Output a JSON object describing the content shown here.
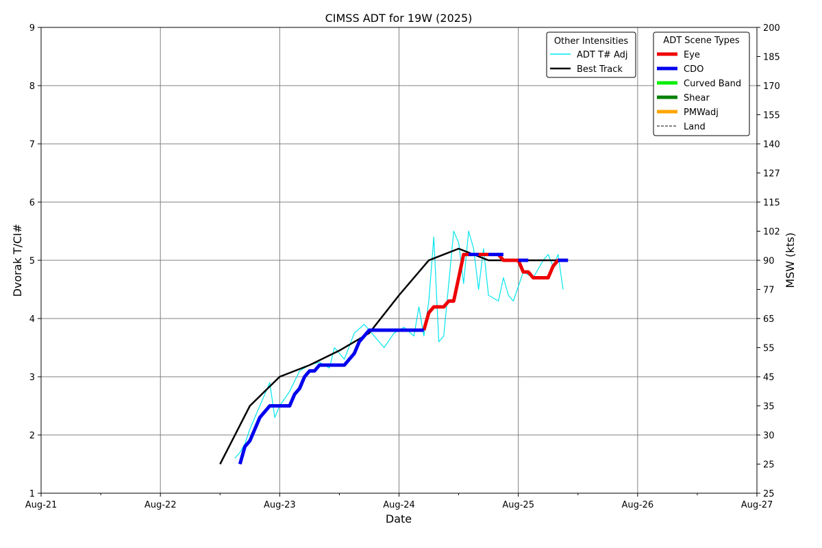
{
  "chart_data": {
    "type": "line",
    "title": "CIMSS ADT for 19W (2025)",
    "xlabel": "Date",
    "ylabel": "Dvorak T/CI#",
    "ylabel_right": "MSW (kts)",
    "x_domain": [
      "2025-08-21",
      "2025-08-27"
    ],
    "x_ticks": [
      {
        "date": "2025-08-21",
        "label": "Aug-21"
      },
      {
        "date": "2025-08-22",
        "label": "Aug-22"
      },
      {
        "date": "2025-08-23",
        "label": "Aug-23"
      },
      {
        "date": "2025-08-24",
        "label": "Aug-24"
      },
      {
        "date": "2025-08-25",
        "label": "Aug-25"
      },
      {
        "date": "2025-08-26",
        "label": "Aug-26"
      },
      {
        "date": "2025-08-27",
        "label": "Aug-27"
      }
    ],
    "ylim": [
      1,
      9
    ],
    "y_ticks": [
      "1",
      "2",
      "3",
      "4",
      "5",
      "6",
      "7",
      "8",
      "9"
    ],
    "right_ticks": [
      {
        "ci": 1,
        "label": "25"
      },
      {
        "ci": 1.5,
        "label": "25"
      },
      {
        "ci": 2,
        "label": "30"
      },
      {
        "ci": 2.5,
        "label": "35"
      },
      {
        "ci": 3,
        "label": "45"
      },
      {
        "ci": 3.5,
        "label": "55"
      },
      {
        "ci": 4,
        "label": "65"
      },
      {
        "ci": 4.5,
        "label": "77"
      },
      {
        "ci": 5,
        "label": "90"
      },
      {
        "ci": 5.5,
        "label": "102"
      },
      {
        "ci": 6,
        "label": "115"
      },
      {
        "ci": 6.5,
        "label": "127"
      },
      {
        "ci": 7,
        "label": "140"
      },
      {
        "ci": 7.5,
        "label": "155"
      },
      {
        "ci": 8,
        "label": "170"
      },
      {
        "ci": 8.5,
        "label": "185"
      },
      {
        "ci": 9,
        "label": "200"
      }
    ],
    "grid": true,
    "legend_other": {
      "title": "Other Intensities",
      "placement": "top-right",
      "entries": [
        {
          "label": "ADT T# Adj",
          "color": "#00e5ee"
        },
        {
          "label": "Best Track",
          "color": "#000000"
        }
      ]
    },
    "legend_scene": {
      "title": "ADT Scene Types",
      "placement": "top-right",
      "entries": [
        {
          "label": "Eye",
          "color": "#ee0000"
        },
        {
          "label": "CDO",
          "color": "#0000ee"
        },
        {
          "label": "Curved Band",
          "color": "#00ee00"
        },
        {
          "label": "Shear",
          "color": "#008000"
        },
        {
          "label": "PMWadj",
          "color": "#ffa500"
        },
        {
          "label": "Land",
          "color": "#000000",
          "dashed": true
        }
      ]
    },
    "series": [
      {
        "name": "Best Track",
        "color": "#000000",
        "points": [
          [
            "2025-08-22T12:00",
            1.5
          ],
          [
            "2025-08-22T18:00",
            2.5
          ],
          [
            "2025-08-23T00:00",
            3.0
          ],
          [
            "2025-08-23T06:00",
            3.2
          ],
          [
            "2025-08-23T12:00",
            3.45
          ],
          [
            "2025-08-23T18:00",
            3.75
          ],
          [
            "2025-08-24T00:00",
            4.4
          ],
          [
            "2025-08-24T06:00",
            5.0
          ],
          [
            "2025-08-24T12:00",
            5.2
          ],
          [
            "2025-08-24T18:00",
            5.0
          ],
          [
            "2025-08-25T00:00",
            5.0
          ],
          [
            "2025-08-25T06:00",
            5.0
          ],
          [
            "2025-08-25T09:00",
            5.0
          ]
        ]
      },
      {
        "name": "ADT T# Adj",
        "color": "#00e5ee",
        "points": [
          [
            "2025-08-22T15:00",
            1.6
          ],
          [
            "2025-08-22T16:00",
            1.7
          ],
          [
            "2025-08-22T17:00",
            1.85
          ],
          [
            "2025-08-22T18:00",
            2.1
          ],
          [
            "2025-08-22T19:00",
            2.3
          ],
          [
            "2025-08-22T20:00",
            2.5
          ],
          [
            "2025-08-22T21:00",
            2.7
          ],
          [
            "2025-08-22T22:00",
            2.9
          ],
          [
            "2025-08-22T23:00",
            2.3
          ],
          [
            "2025-08-23T00:00",
            2.5
          ],
          [
            "2025-08-23T02:00",
            2.75
          ],
          [
            "2025-08-23T04:00",
            3.1
          ],
          [
            "2025-08-23T06:00",
            3.2
          ],
          [
            "2025-08-23T08:00",
            3.25
          ],
          [
            "2025-08-23T10:00",
            3.15
          ],
          [
            "2025-08-23T11:00",
            3.5
          ],
          [
            "2025-08-23T13:00",
            3.3
          ],
          [
            "2025-08-23T15:00",
            3.75
          ],
          [
            "2025-08-23T17:00",
            3.9
          ],
          [
            "2025-08-23T19:00",
            3.7
          ],
          [
            "2025-08-23T21:00",
            3.5
          ],
          [
            "2025-08-23T23:00",
            3.75
          ],
          [
            "2025-08-24T01:00",
            3.85
          ],
          [
            "2025-08-24T03:00",
            3.7
          ],
          [
            "2025-08-24T04:00",
            4.2
          ],
          [
            "2025-08-24T05:00",
            3.7
          ],
          [
            "2025-08-24T06:00",
            4.3
          ],
          [
            "2025-08-24T07:00",
            5.4
          ],
          [
            "2025-08-24T08:00",
            3.6
          ],
          [
            "2025-08-24T09:00",
            3.7
          ],
          [
            "2025-08-24T10:00",
            4.6
          ],
          [
            "2025-08-24T11:00",
            5.5
          ],
          [
            "2025-08-24T12:00",
            5.3
          ],
          [
            "2025-08-24T13:00",
            4.6
          ],
          [
            "2025-08-24T14:00",
            5.5
          ],
          [
            "2025-08-24T15:00",
            5.2
          ],
          [
            "2025-08-24T16:00",
            4.5
          ],
          [
            "2025-08-24T17:00",
            5.2
          ],
          [
            "2025-08-24T18:00",
            4.4
          ],
          [
            "2025-08-24T20:00",
            4.3
          ],
          [
            "2025-08-24T21:00",
            4.7
          ],
          [
            "2025-08-24T22:00",
            4.4
          ],
          [
            "2025-08-24T23:00",
            4.3
          ],
          [
            "2025-08-25T01:00",
            4.8
          ],
          [
            "2025-08-25T03:00",
            4.7
          ],
          [
            "2025-08-25T05:00",
            5.0
          ],
          [
            "2025-08-25T06:00",
            5.1
          ],
          [
            "2025-08-25T07:00",
            4.9
          ],
          [
            "2025-08-25T08:00",
            5.1
          ],
          [
            "2025-08-25T09:00",
            4.5
          ]
        ]
      },
      {
        "name": "CDO",
        "color": "#0000ee",
        "points": [
          [
            "2025-08-22T16:00",
            1.5
          ],
          [
            "2025-08-22T17:00",
            1.8
          ],
          [
            "2025-08-22T18:00",
            1.9
          ],
          [
            "2025-08-22T20:00",
            2.3
          ],
          [
            "2025-08-22T22:00",
            2.5
          ],
          [
            "2025-08-23T02:00",
            2.5
          ],
          [
            "2025-08-23T03:00",
            2.7
          ],
          [
            "2025-08-23T04:00",
            2.8
          ],
          [
            "2025-08-23T05:00",
            3.0
          ],
          [
            "2025-08-23T06:00",
            3.1
          ],
          [
            "2025-08-23T07:00",
            3.1
          ],
          [
            "2025-08-23T08:00",
            3.2
          ],
          [
            "2025-08-23T13:00",
            3.2
          ],
          [
            "2025-08-23T14:00",
            3.3
          ],
          [
            "2025-08-23T15:00",
            3.4
          ],
          [
            "2025-08-23T16:00",
            3.6
          ],
          [
            "2025-08-23T17:00",
            3.7
          ],
          [
            "2025-08-23T18:00",
            3.8
          ],
          [
            "2025-08-24T05:00",
            3.8
          ]
        ]
      },
      {
        "name": "Eye",
        "color": "#ee0000",
        "points": [
          [
            "2025-08-24T05:00",
            3.8
          ],
          [
            "2025-08-24T06:00",
            4.1
          ],
          [
            "2025-08-24T07:00",
            4.2
          ],
          [
            "2025-08-24T09:00",
            4.2
          ],
          [
            "2025-08-24T10:00",
            4.3
          ],
          [
            "2025-08-24T11:00",
            4.3
          ],
          [
            "2025-08-24T12:00",
            4.7
          ],
          [
            "2025-08-24T13:00",
            5.1
          ],
          [
            "2025-08-24T20:00",
            5.1
          ],
          [
            "2025-08-24T21:00",
            5.0
          ],
          [
            "2025-08-25T00:00",
            5.0
          ],
          [
            "2025-08-25T01:00",
            4.8
          ],
          [
            "2025-08-25T02:00",
            4.8
          ],
          [
            "2025-08-25T03:00",
            4.7
          ],
          [
            "2025-08-25T06:00",
            4.7
          ],
          [
            "2025-08-25T07:00",
            4.9
          ],
          [
            "2025-08-25T08:00",
            5.0
          ],
          [
            "2025-08-25T10:00",
            5.0
          ]
        ]
      },
      {
        "name": "CDO",
        "color": "#0000ee",
        "points": [
          [
            "2025-08-24T14:00",
            5.1
          ],
          [
            "2025-08-24T16:00",
            5.1
          ]
        ]
      },
      {
        "name": "CDO",
        "color": "#0000ee",
        "points": [
          [
            "2025-08-24T18:00",
            5.1
          ],
          [
            "2025-08-24T21:00",
            5.1
          ]
        ]
      },
      {
        "name": "CDO",
        "color": "#0000ee",
        "points": [
          [
            "2025-08-25T00:00",
            5.0
          ],
          [
            "2025-08-25T02:00",
            5.0
          ]
        ]
      },
      {
        "name": "CDO",
        "color": "#0000ee",
        "points": [
          [
            "2025-08-25T08:00",
            5.0
          ],
          [
            "2025-08-25T10:00",
            5.0
          ]
        ]
      }
    ]
  }
}
